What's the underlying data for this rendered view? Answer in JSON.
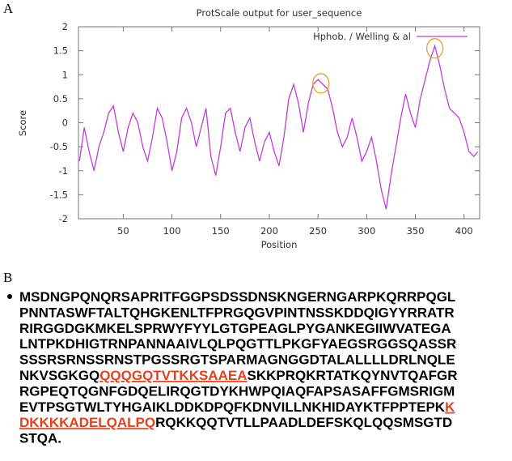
{
  "panel_a_label": "A",
  "panel_b_label": "B",
  "chart_data": {
    "type": "line",
    "title": "ProtScale output for user_sequence",
    "xlabel": "Position",
    "ylabel": "Score",
    "x": [
      5,
      10,
      15,
      20,
      25,
      30,
      35,
      40,
      45,
      50,
      55,
      60,
      65,
      70,
      75,
      80,
      85,
      90,
      95,
      100,
      105,
      110,
      115,
      120,
      125,
      130,
      135,
      140,
      145,
      150,
      155,
      160,
      165,
      170,
      175,
      180,
      185,
      190,
      195,
      200,
      205,
      210,
      215,
      220,
      225,
      230,
      235,
      240,
      245,
      250,
      255,
      260,
      265,
      270,
      275,
      280,
      285,
      290,
      295,
      300,
      305,
      310,
      315,
      320,
      325,
      330,
      335,
      340,
      345,
      350,
      355,
      360,
      365,
      370,
      375,
      380,
      385,
      390,
      395,
      400,
      405,
      410,
      414
    ],
    "series": [
      {
        "name": "Hphob. / Welling & al",
        "color": "#c03cd8",
        "values": [
          -0.8,
          -0.1,
          -0.6,
          -1.0,
          -0.5,
          -0.2,
          0.2,
          0.35,
          -0.2,
          -0.6,
          -0.1,
          0.2,
          0.0,
          -0.5,
          -0.8,
          -0.3,
          0.3,
          0.1,
          -0.4,
          -1.0,
          -0.6,
          0.1,
          0.3,
          0.0,
          -0.5,
          -0.1,
          0.3,
          -0.7,
          -1.1,
          -0.5,
          0.2,
          0.3,
          -0.2,
          -0.6,
          -0.1,
          0.1,
          -0.4,
          -0.8,
          -0.4,
          -0.2,
          -0.6,
          -0.9,
          -0.3,
          0.5,
          0.8,
          0.4,
          -0.2,
          0.4,
          0.8,
          0.9,
          0.8,
          0.7,
          0.3,
          -0.2,
          -0.5,
          -0.3,
          0.1,
          -0.3,
          -0.8,
          -0.6,
          -0.3,
          -0.8,
          -1.4,
          -1.8,
          -1.1,
          -0.5,
          0.1,
          0.6,
          0.2,
          -0.1,
          0.5,
          0.9,
          1.3,
          1.6,
          1.2,
          0.7,
          0.3,
          0.2,
          0.1,
          -0.2,
          -0.6,
          -0.7,
          -0.6
        ]
      }
    ],
    "xlim": [
      4,
      416
    ],
    "ylim": [
      -2,
      2
    ],
    "xticks": [
      50,
      100,
      150,
      200,
      250,
      300,
      350,
      400
    ],
    "yticks": [
      2,
      1.5,
      1,
      0.5,
      0,
      -0.5,
      -1,
      -1.5,
      -2
    ],
    "legend": "upper right",
    "highlights": [
      {
        "x": 253,
        "y": 0.82
      },
      {
        "x": 370,
        "y": 1.55
      }
    ],
    "highlight_color": "#e8a030"
  },
  "sequence": {
    "highlight_color": "#e8401c",
    "lines": [
      [
        {
          "text": "MSDNGPQNQRSAPRITFGGPSDSSDNSKNGERNGARPKQRRPQGL",
          "highlight": false
        }
      ],
      [
        {
          "text": "PNNTASWFTALTQHGKENLTFPRGQGVPINTNSSKDDQIGYYRRATR",
          "highlight": false
        }
      ],
      [
        {
          "text": "RIRGGDGKMKELSPRWYFYYLGTGPEAGLPYGANKEGIIWVATEGA",
          "highlight": false
        }
      ],
      [
        {
          "text": "LNTPKDHIGTRNPANNAAIVLQLPQGTTLPKGFYAEGSRGGSQASSR",
          "highlight": false
        }
      ],
      [
        {
          "text": "SSSRSRNSSRNSTPGSSRGTSPARMAGNGGDTALALLLLDRLNQLE",
          "highlight": false
        }
      ],
      [
        {
          "text": "NKVSGKGQ",
          "highlight": false
        },
        {
          "text": "QQQGQTVTKKSAAEA",
          "highlight": true
        },
        {
          "text": "SKKPRQKRTATKQYNVTQAFGR",
          "highlight": false
        }
      ],
      [
        {
          "text": "RGPEQTQGNFGDQELIRQGTDYKHWPQIAQFAPSASAFFGMSRIGM",
          "highlight": false
        }
      ],
      [
        {
          "text": "EVTPSGTWLTYHGAIKLDDKDPQFKDNVILLNKHIDAYKTFPPTEPK",
          "highlight": false
        },
        {
          "text": "K",
          "highlight": true
        }
      ],
      [
        {
          "text": "DKKKKADELQALPQ",
          "highlight": true
        },
        {
          "text": "RQKKQQTVTLLPAADLDEFSKQLQQSMSGTD",
          "highlight": false
        }
      ],
      [
        {
          "text": "STQA.",
          "highlight": false
        }
      ]
    ]
  }
}
